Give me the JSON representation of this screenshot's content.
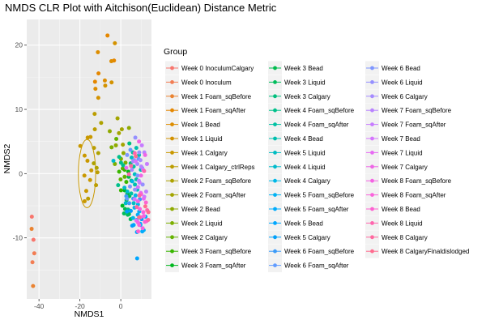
{
  "chart_data": {
    "type": "scatter",
    "title": "NMDS CLR Plot with Aitchison(Euclidean) Distance Metric",
    "xlabel": "NMDS1",
    "ylabel": "NMDS2",
    "xlim": [
      -46,
      15
    ],
    "ylim": [
      -19.5,
      24
    ],
    "x_ticks": [
      -40,
      -20,
      0
    ],
    "y_ticks": [
      -10,
      0,
      10,
      20
    ],
    "grid": true,
    "legend": {
      "title": "Group",
      "position": "right",
      "columns": 3
    },
    "ellipse": {
      "group": "Week 1 Calgary",
      "center": [
        -16.5,
        0
      ],
      "rx": 4.2,
      "ry": 5.3
    },
    "series": [
      {
        "name": "Week 0 InoculumCalgary",
        "color": "#F8766D",
        "points": [
          [
            -43.5,
            -6.7
          ],
          [
            -42.7,
            -10.3
          ]
        ]
      },
      {
        "name": "Week 0 Inoculum",
        "color": "#F27D53",
        "points": [
          [
            -42.3,
            -12.4
          ],
          [
            -43.2,
            -13.8
          ]
        ]
      },
      {
        "name": "Week 1 Foam_sqBefore",
        "color": "#EA8331",
        "points": [
          [
            -43.6,
            -8.6
          ],
          [
            -42.9,
            -17.5
          ]
        ]
      },
      {
        "name": "Week 1 Foam_sqAfter",
        "color": "#E58700",
        "points": [
          [
            -6.5,
            21.5
          ],
          [
            -3.3,
            17.6
          ],
          [
            -10.9,
            15.6
          ],
          [
            -12.6,
            14.3
          ]
        ]
      },
      {
        "name": "Week 1 Bead",
        "color": "#DD8D00",
        "points": [
          [
            -11.2,
            18.9
          ],
          [
            -4.6,
            17.5
          ],
          [
            -12.4,
            13.2
          ],
          [
            -7.8,
            14.5
          ]
        ]
      },
      {
        "name": "Week 1 Liquid",
        "color": "#D39200",
        "points": [
          [
            -7.6,
            13.7
          ],
          [
            -2.9,
            20.3
          ],
          [
            -11.0,
            11.8
          ],
          [
            -4.5,
            14.2
          ]
        ]
      },
      {
        "name": "Week 1 Calgary",
        "color": "#C99800",
        "points": [
          [
            -19.8,
            4.3
          ],
          [
            -14.8,
            5.7
          ],
          [
            -17.7,
            2.8
          ],
          [
            -16.3,
            2.0
          ],
          [
            -17.8,
            -0.3
          ],
          [
            -15.0,
            -1.0
          ],
          [
            -16.9,
            -2.7
          ],
          [
            -17.7,
            -4.3
          ],
          [
            -14.4,
            0.5
          ],
          [
            -16.2,
            5.6
          ]
        ]
      },
      {
        "name": "Week 1 Calgary_ctrlReps",
        "color": "#BB9D00",
        "points": [
          [
            -12.8,
            9.3
          ],
          [
            -12.7,
            6.9
          ],
          [
            -13.1,
            4.0
          ],
          [
            -11.4,
            0.2
          ],
          [
            -12.1,
            -1.8
          ],
          [
            -16.0,
            -3.9
          ]
        ]
      },
      {
        "name": "Week 2 Foam_sqBefore",
        "color": "#AEA200",
        "points": [
          [
            -9.6,
            7.9
          ],
          [
            -13.2,
            1.6
          ],
          [
            -11.0,
            3.2
          ],
          [
            -11.8,
            0.9
          ]
        ]
      },
      {
        "name": "Week 2 Foam_sqAfter",
        "color": "#A3A500",
        "points": [
          [
            -1.6,
            8.6
          ],
          [
            0.5,
            6.9
          ],
          [
            -0.9,
            6.3
          ],
          [
            1.0,
            4.5
          ]
        ]
      },
      {
        "name": "Week 2 Bead",
        "color": "#8FAA00",
        "points": [
          [
            -5.4,
            6.6
          ],
          [
            4.0,
            7.1
          ],
          [
            -2.4,
            4.4
          ],
          [
            1.3,
            3.2
          ]
        ]
      },
      {
        "name": "Week 2 Liquid",
        "color": "#7CAE00",
        "points": [
          [
            -4.5,
            4.1
          ],
          [
            -2.9,
            1.5
          ],
          [
            0.1,
            2.3
          ],
          [
            2.3,
            1.7
          ]
        ]
      },
      {
        "name": "Week 2 Calgary",
        "color": "#64B200",
        "points": [
          [
            -2.2,
            5.4
          ],
          [
            0.9,
            0.8
          ],
          [
            -0.1,
            -0.9
          ],
          [
            1.9,
            -0.5
          ]
        ]
      },
      {
        "name": "Week 3 Foam_sqBefore",
        "color": "#39B600",
        "points": [
          [
            1.9,
            0.6
          ],
          [
            -0.8,
            0.3
          ],
          [
            2.7,
            -1.3
          ],
          [
            0.1,
            -2.6
          ]
        ]
      },
      {
        "name": "Week 3 Foam_sqAfter",
        "color": "#00B81F",
        "points": [
          [
            3.7,
            0.3
          ],
          [
            1.9,
            -2.6
          ],
          [
            3.2,
            -3.1
          ],
          [
            0.8,
            -5.0
          ]
        ]
      },
      {
        "name": "Week 3 Bead",
        "color": "#00BB4E",
        "points": [
          [
            3.9,
            -0.5
          ],
          [
            4.2,
            -3.5
          ],
          [
            2.1,
            -5.5
          ],
          [
            4.0,
            -6.3
          ]
        ]
      },
      {
        "name": "Week 3 Liquid",
        "color": "#00BD5C",
        "points": [
          [
            2.8,
            -4.1
          ],
          [
            1.6,
            -6.2
          ],
          [
            3.4,
            -6.4
          ],
          [
            4.8,
            -7.1
          ]
        ]
      },
      {
        "name": "Week 3 Calgary",
        "color": "#00BF7D",
        "points": [
          [
            4.2,
            4.7
          ],
          [
            4.8,
            1.6
          ],
          [
            5.2,
            -1.1
          ],
          [
            3.6,
            -5.6
          ]
        ]
      },
      {
        "name": "Week 4 Foam_sqBefore",
        "color": "#00C08B",
        "points": [
          [
            -0.8,
            2.6
          ],
          [
            1.1,
            1.3
          ],
          [
            -1.3,
            -1.8
          ],
          [
            0.1,
            1.7
          ]
        ]
      },
      {
        "name": "Week 4 Foam_sqAfter",
        "color": "#00C1A3",
        "points": [
          [
            5.9,
            3.3
          ],
          [
            6.3,
            1.1
          ],
          [
            7.6,
            -0.9
          ],
          [
            5.1,
            -3.1
          ]
        ]
      },
      {
        "name": "Week 4 Bead",
        "color": "#00BFAE",
        "points": [
          [
            7.6,
            4.0
          ],
          [
            8.9,
            2.9
          ],
          [
            9.8,
            0.6
          ],
          [
            6.9,
            -1.7
          ]
        ]
      },
      {
        "name": "Week 5 Liquid",
        "color": "#00BDC2",
        "points": [
          [
            5.3,
            2.5
          ],
          [
            6.8,
            -0.1
          ],
          [
            8.1,
            -2.5
          ],
          [
            6.3,
            -4.6
          ]
        ]
      },
      {
        "name": "Week 4 Liquid",
        "color": "#00BBCC",
        "points": [
          [
            -3.6,
            2.0
          ],
          [
            1.8,
            -2.2
          ],
          [
            3.2,
            -2.8
          ],
          [
            2.4,
            -4.6
          ]
        ]
      },
      {
        "name": "Week 4 Calgary",
        "color": "#00B8E7",
        "points": [
          [
            5.6,
            -1.2
          ],
          [
            7.2,
            -3.4
          ],
          [
            8.4,
            -4.8
          ],
          [
            6.0,
            -6.9
          ]
        ]
      },
      {
        "name": "Week 5 Foam_sqBefore",
        "color": "#00B2F3",
        "points": [
          [
            6.7,
            -5.3
          ],
          [
            9.0,
            -5.9
          ],
          [
            7.8,
            -7.2
          ],
          [
            11.2,
            -8.8
          ]
        ]
      },
      {
        "name": "Week 5 Foam_sqAfter",
        "color": "#00ACFC",
        "points": [
          [
            8.3,
            -6.4
          ],
          [
            9.5,
            -7.8
          ],
          [
            10.5,
            -9.0
          ],
          [
            12.1,
            -6.7
          ]
        ]
      },
      {
        "name": "Week 5 Bead",
        "color": "#00A7FF",
        "points": [
          [
            7.9,
            -9.1
          ],
          [
            9.6,
            -8.0
          ],
          [
            8.0,
            -13.2
          ],
          [
            6.3,
            -8.0
          ]
        ]
      },
      {
        "name": "Week 5 Calgary",
        "color": "#00A0FA",
        "points": [
          [
            4.9,
            -5.8
          ],
          [
            5.6,
            -8.1
          ],
          [
            10.2,
            -7.1
          ],
          [
            3.0,
            -5.9
          ]
        ]
      },
      {
        "name": "Week 6 Foam_sqBefore",
        "color": "#3C9BF8",
        "points": [
          [
            6.1,
            -3.9
          ],
          [
            9.3,
            -4.0
          ],
          [
            4.1,
            -4.6
          ],
          [
            2.7,
            -3.5
          ]
        ]
      },
      {
        "name": "Week 6 Foam_sqAfter",
        "color": "#619CFF",
        "points": [
          [
            4.7,
            3.7
          ],
          [
            10.4,
            0.9
          ],
          [
            8.7,
            2.3
          ],
          [
            3.0,
            -3.9
          ]
        ]
      },
      {
        "name": "Week 6 Bead",
        "color": "#7E96FF",
        "points": [
          [
            3.1,
            2.9
          ],
          [
            6.5,
            2.1
          ],
          [
            8.2,
            -0.3
          ],
          [
            4.5,
            -2.0
          ]
        ]
      },
      {
        "name": "Week 6 Liquid",
        "color": "#9590FF",
        "points": [
          [
            7.1,
            5.6
          ],
          [
            9.0,
            3.3
          ],
          [
            10.7,
            -1.7
          ],
          [
            6.9,
            -2.5
          ]
        ]
      },
      {
        "name": "Week 6 Calgary",
        "color": "#A58AFF",
        "points": [
          [
            6.0,
            1.9
          ],
          [
            8.1,
            1.5
          ],
          [
            9.6,
            2.1
          ],
          [
            5.4,
            0.6
          ]
        ]
      },
      {
        "name": "Week 7 Foam_sqBefore",
        "color": "#B983FF",
        "points": [
          [
            11.5,
            3.3
          ],
          [
            10.0,
            1.1
          ],
          [
            8.8,
            -1.1
          ],
          [
            12.4,
            -2.8
          ]
        ]
      },
      {
        "name": "Week 7 Foam_sqAfter",
        "color": "#C77CFF",
        "points": [
          [
            10.3,
            4.4
          ],
          [
            12.8,
            1.5
          ],
          [
            9.2,
            -1.4
          ],
          [
            11.5,
            -3.6
          ]
        ]
      },
      {
        "name": "Week 7 Bead",
        "color": "#D575FE",
        "points": [
          [
            7.3,
            1.9
          ],
          [
            10.9,
            0.6
          ],
          [
            8.4,
            -2.1
          ],
          [
            6.8,
            -4.0
          ]
        ]
      },
      {
        "name": "Week 7 Liquid",
        "color": "#E76BF3",
        "points": [
          [
            2.7,
            0.9
          ],
          [
            9.8,
            -3.0
          ],
          [
            11.2,
            -3.9
          ],
          [
            7.6,
            -7.3
          ]
        ]
      },
      {
        "name": "Week 7 Calgary",
        "color": "#EE66E6",
        "points": [
          [
            8.9,
            5.0
          ],
          [
            11.9,
            2.9
          ],
          [
            9.9,
            -0.3
          ],
          [
            8.4,
            -4.3
          ]
        ]
      },
      {
        "name": "Week 8 Foam_sqBefore",
        "color": "#F563E3",
        "points": [
          [
            9.3,
            -5.5
          ],
          [
            11.3,
            -6.6
          ],
          [
            10.7,
            -8.5
          ],
          [
            8.4,
            -7.6
          ]
        ]
      },
      {
        "name": "Week 8 Foam_sqAfter",
        "color": "#FA62DB",
        "points": [
          [
            11.0,
            -6.0
          ],
          [
            12.6,
            -7.4
          ],
          [
            9.0,
            -8.0
          ],
          [
            10.0,
            -3.2
          ]
        ]
      },
      {
        "name": "Week 8 Bead",
        "color": "#FD61D1",
        "points": [
          [
            9.7,
            -6.8
          ],
          [
            11.8,
            -7.5
          ],
          [
            8.5,
            -9.0
          ],
          [
            12.3,
            -4.5
          ]
        ]
      },
      {
        "name": "Week 8 Liquid",
        "color": "#FF65AE",
        "points": [
          [
            6.8,
            3.2
          ],
          [
            11.4,
            0.4
          ],
          [
            4.0,
            -0.1
          ],
          [
            12.9,
            -5.7
          ]
        ]
      },
      {
        "name": "Week 8 Calgary",
        "color": "#FF689F",
        "points": [
          [
            5.0,
            1.2
          ],
          [
            7.8,
            -5.2
          ],
          [
            13.4,
            -7.2
          ],
          [
            9.1,
            -3.4
          ]
        ]
      },
      {
        "name": "Week 8 CalgaryFinaldislodged",
        "color": "#FF6C90",
        "points": [
          [
            7.3,
            2.7
          ],
          [
            12.0,
            -5.1
          ],
          [
            8.9,
            -6.8
          ],
          [
            13.5,
            -6.0
          ]
        ]
      }
    ]
  }
}
